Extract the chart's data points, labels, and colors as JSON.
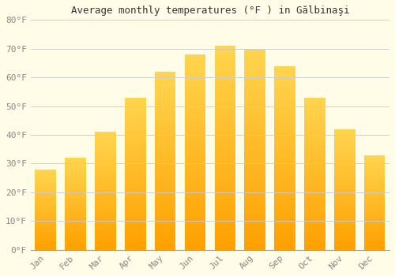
{
  "title": "Average monthly temperatures (°F ) in Gălbinaşi",
  "months": [
    "Jan",
    "Feb",
    "Mar",
    "Apr",
    "May",
    "Jun",
    "Jul",
    "Aug",
    "Sep",
    "Oct",
    "Nov",
    "Dec"
  ],
  "values": [
    28,
    32,
    41,
    53,
    62,
    68,
    71,
    70,
    64,
    53,
    42,
    33
  ],
  "bar_color_top": "#FFD54F",
  "bar_color_bottom": "#FFA000",
  "background_color": "#FFFDE7",
  "grid_color": "#CCCCCC",
  "ylim": [
    0,
    80
  ],
  "yticks": [
    0,
    10,
    20,
    30,
    40,
    50,
    60,
    70,
    80
  ],
  "ytick_labels": [
    "0°F",
    "10°F",
    "20°F",
    "30°F",
    "40°F",
    "50°F",
    "60°F",
    "70°F",
    "80°F"
  ],
  "title_fontsize": 9,
  "tick_fontsize": 8,
  "tick_color": "#888888",
  "font_family": "monospace"
}
